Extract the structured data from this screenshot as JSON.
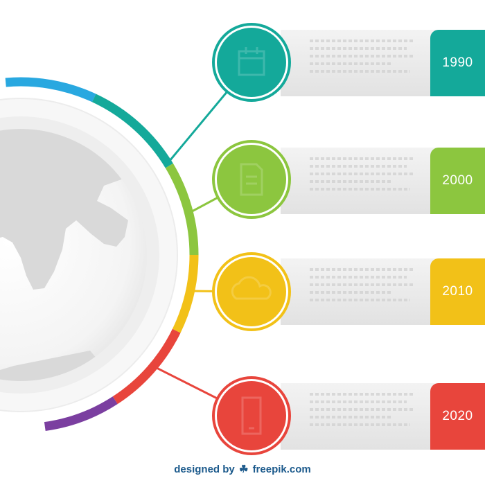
{
  "milestones": [
    {
      "year": "1990",
      "color": "#14a99a",
      "icon": "calendar-icon"
    },
    {
      "year": "2000",
      "color": "#8cc63f",
      "icon": "document-icon"
    },
    {
      "year": "2010",
      "color": "#f2c118",
      "icon": "cloud-icon"
    },
    {
      "year": "2020",
      "color": "#e8453c",
      "icon": "mobile-phone-icon"
    }
  ],
  "ring_colors": [
    "#29a8e0",
    "#14a99a",
    "#8cc63f",
    "#f2c118",
    "#e8453c",
    "#7b3fa0"
  ],
  "credit": {
    "prefix": "designed by",
    "brand": "freepik.com"
  }
}
